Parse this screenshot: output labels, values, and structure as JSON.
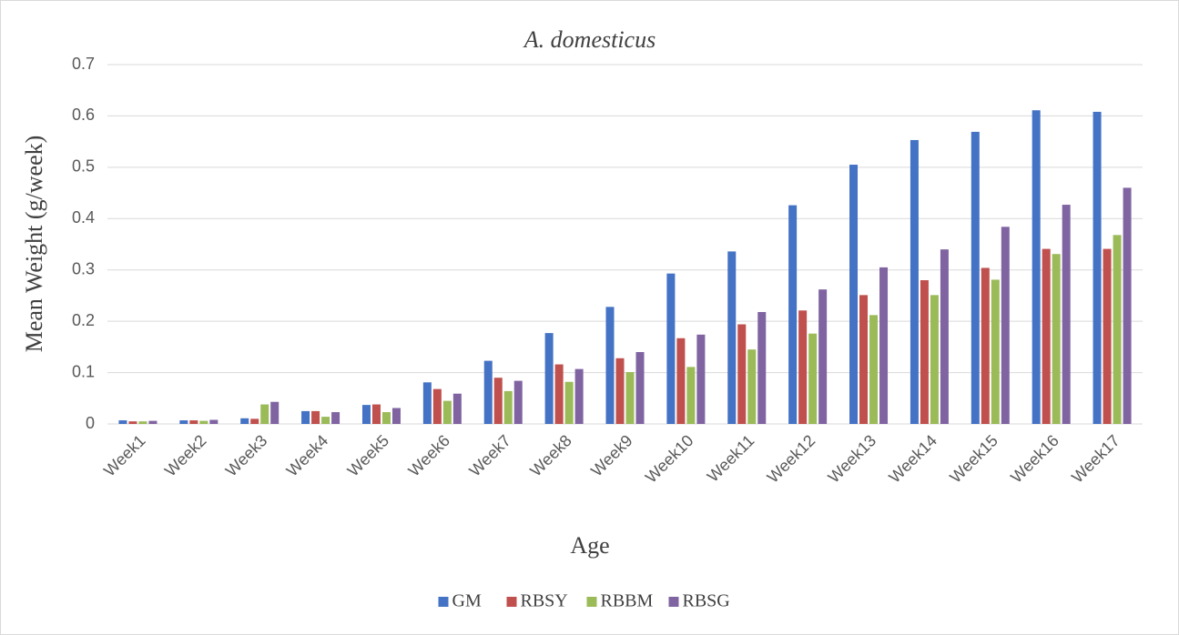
{
  "chart_data": {
    "type": "bar",
    "title": "A. domesticus",
    "x_label": "Age",
    "y_label": "Mean Weight (g/week)",
    "categories": [
      "Week1",
      "Week2",
      "Week3",
      "Week4",
      "Week5",
      "Week6",
      "Week7",
      "Week8",
      "Week9",
      "Week10",
      "Week11",
      "Week12",
      "Week13",
      "Week14",
      "Week15",
      "Week16",
      "Week17"
    ],
    "series": [
      {
        "name": "GM",
        "color": "#4472c4",
        "values": [
          0.007,
          0.007,
          0.011,
          0.025,
          0.037,
          0.081,
          0.123,
          0.177,
          0.228,
          0.293,
          0.336,
          0.426,
          0.505,
          0.553,
          0.569,
          0.611,
          0.608
        ]
      },
      {
        "name": "RBSY",
        "color": "#c0504d",
        "values": [
          0.005,
          0.007,
          0.01,
          0.025,
          0.038,
          0.068,
          0.09,
          0.116,
          0.128,
          0.167,
          0.194,
          0.221,
          0.251,
          0.28,
          0.304,
          0.341,
          0.341
        ]
      },
      {
        "name": "RBBM",
        "color": "#9bbb59",
        "values": [
          0.005,
          0.006,
          0.038,
          0.014,
          0.023,
          0.045,
          0.064,
          0.082,
          0.101,
          0.111,
          0.145,
          0.176,
          0.212,
          0.251,
          0.281,
          0.331,
          0.368
        ]
      },
      {
        "name": "RBSG",
        "color": "#8064a2",
        "values": [
          0.006,
          0.008,
          0.043,
          0.023,
          0.031,
          0.059,
          0.084,
          0.107,
          0.14,
          0.174,
          0.218,
          0.262,
          0.305,
          0.34,
          0.384,
          0.427,
          0.46
        ]
      }
    ],
    "ylim": [
      0,
      0.7
    ],
    "yticks": [
      0,
      0.1,
      0.2,
      0.3,
      0.4,
      0.5,
      0.6,
      0.7
    ],
    "grid": true,
    "legend": "bottom"
  }
}
